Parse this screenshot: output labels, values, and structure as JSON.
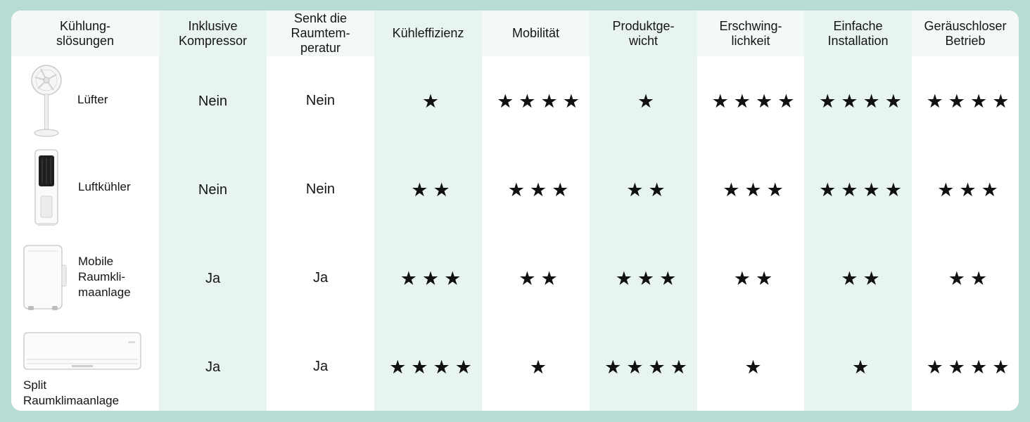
{
  "headers": [
    "Kühlung-\nslösungen",
    "Inklusive\nKompressor",
    "Senkt die\nRaumtem-\nperatur",
    "Kühleffizienz",
    "Mobilität",
    "Produktge-\nwicht",
    "Erschwing-\nlichkeit",
    "Einfache\nInstallation",
    "Geräuschloser\nBetrieb"
  ],
  "rows": [
    {
      "name": "Lüfter",
      "icon": "standing-fan-icon",
      "kompressor": "Nein",
      "senkt": "Nein",
      "ratings": {
        "kuehleffizienz": 1,
        "mobilitaet": 4,
        "gewicht": 1,
        "erschwinglichkeit": 4,
        "installation": 4,
        "geraeuschlos": 4
      },
      "stars": {
        "kuehleffizienz": "★",
        "mobilitaet": "★★★★",
        "gewicht": "★",
        "erschwinglichkeit": "★★★★",
        "installation": "★★★★",
        "geraeuschlos": "★★★★"
      }
    },
    {
      "name": "Luftkühler",
      "icon": "tower-air-cooler-icon",
      "kompressor": "Nein",
      "senkt": "Nein",
      "ratings": {
        "kuehleffizienz": 2,
        "mobilitaet": 3,
        "gewicht": 2,
        "erschwinglichkeit": 3,
        "installation": 4,
        "geraeuschlos": 3
      },
      "stars": {
        "kuehleffizienz": "★★",
        "mobilitaet": "★★★",
        "gewicht": "★★",
        "erschwinglichkeit": "★★★",
        "installation": "★★★★",
        "geraeuschlos": "★★★"
      }
    },
    {
      "name": "Mobile\nRaumkli-\nmaanlage",
      "icon": "portable-air-conditioner-icon",
      "kompressor": "Ja",
      "senkt": "Ja",
      "ratings": {
        "kuehleffizienz": 3,
        "mobilitaet": 2,
        "gewicht": 3,
        "erschwinglichkeit": 2,
        "installation": 2,
        "geraeuschlos": 2
      },
      "stars": {
        "kuehleffizienz": "★★★",
        "mobilitaet": "★★",
        "gewicht": "★★★",
        "erschwinglichkeit": "★★",
        "installation": "★★",
        "geraeuschlos": "★★"
      }
    },
    {
      "name": "Split\nRaumklimaanlage",
      "icon": "split-air-conditioner-icon",
      "kompressor": "Ja",
      "senkt": "Ja",
      "ratings": {
        "kuehleffizienz": 4,
        "mobilitaet": 1,
        "gewicht": 4,
        "erschwinglichkeit": 1,
        "installation": 1,
        "geraeuschlos": 4
      },
      "stars": {
        "kuehleffizienz": "★★★★",
        "mobilitaet": "★",
        "gewicht": "★★★★",
        "erschwinglichkeit": "★",
        "installation": "★",
        "geraeuschlos": "★★★★"
      }
    }
  ],
  "colors": {
    "background": "#b6dcd4",
    "tint": "#e8f4f1",
    "card": "#ffffff",
    "star": "#111111"
  }
}
